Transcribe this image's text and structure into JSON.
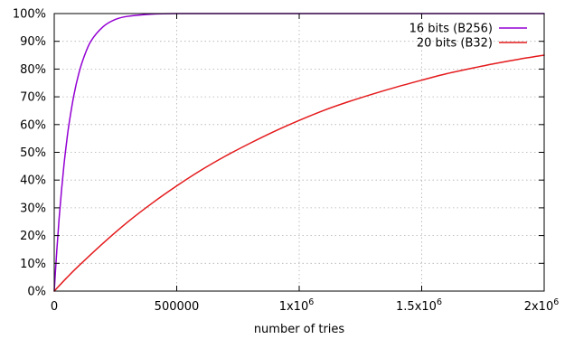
{
  "chart_data": {
    "type": "line",
    "title": "",
    "xlabel": "number of tries",
    "ylabel": "",
    "xlim": [
      0,
      2000000
    ],
    "ylim": [
      0,
      100
    ],
    "grid": true,
    "legend_position": "top-right",
    "x_ticks": [
      {
        "value": 0,
        "label": "0"
      },
      {
        "value": 500000,
        "label": "500000"
      },
      {
        "value": 1000000,
        "label": "1x10",
        "exp": "6"
      },
      {
        "value": 1500000,
        "label": "1.5x10",
        "exp": "6"
      },
      {
        "value": 2000000,
        "label": "2x10",
        "exp": "6"
      }
    ],
    "y_ticks": [
      {
        "value": 0,
        "label": "0%"
      },
      {
        "value": 10,
        "label": "10%"
      },
      {
        "value": 20,
        "label": "20%"
      },
      {
        "value": 30,
        "label": "30%"
      },
      {
        "value": 40,
        "label": "40%"
      },
      {
        "value": 50,
        "label": "50%"
      },
      {
        "value": 60,
        "label": "60%"
      },
      {
        "value": 70,
        "label": "70%"
      },
      {
        "value": 80,
        "label": "80%"
      },
      {
        "value": 90,
        "label": "90%"
      },
      {
        "value": 100,
        "label": "100%"
      }
    ],
    "series": [
      {
        "name": "16 bits (B256)",
        "color": "#9400d3",
        "x": [
          0,
          10000,
          20000,
          30000,
          40000,
          50000,
          60000,
          80000,
          100000,
          120000,
          150000,
          200000,
          250000,
          300000,
          400000,
          500000,
          750000,
          1000000,
          1500000,
          2000000
        ],
        "y": [
          0,
          14,
          26.3,
          36.6,
          45.7,
          53.3,
          60,
          70.5,
          78.3,
          84,
          90.1,
          95.3,
          97.9,
          99.0,
          99.8,
          100,
          100,
          100,
          100,
          100
        ]
      },
      {
        "name": "20 bits (B32)",
        "color": "#e41a1c",
        "x": [
          0,
          50000,
          100000,
          200000,
          300000,
          400000,
          500000,
          600000,
          700000,
          800000,
          900000,
          1000000,
          1100000,
          1200000,
          1300000,
          1400000,
          1500000,
          1600000,
          1700000,
          1800000,
          1900000,
          2000000
        ],
        "y": [
          0,
          4.7,
          9.1,
          17.3,
          24.9,
          31.7,
          37.9,
          43.6,
          48.7,
          53.3,
          57.6,
          61.5,
          65.1,
          68.2,
          71.0,
          73.6,
          76.0,
          78.3,
          80.2,
          82.0,
          83.6,
          85.0
        ]
      }
    ]
  }
}
